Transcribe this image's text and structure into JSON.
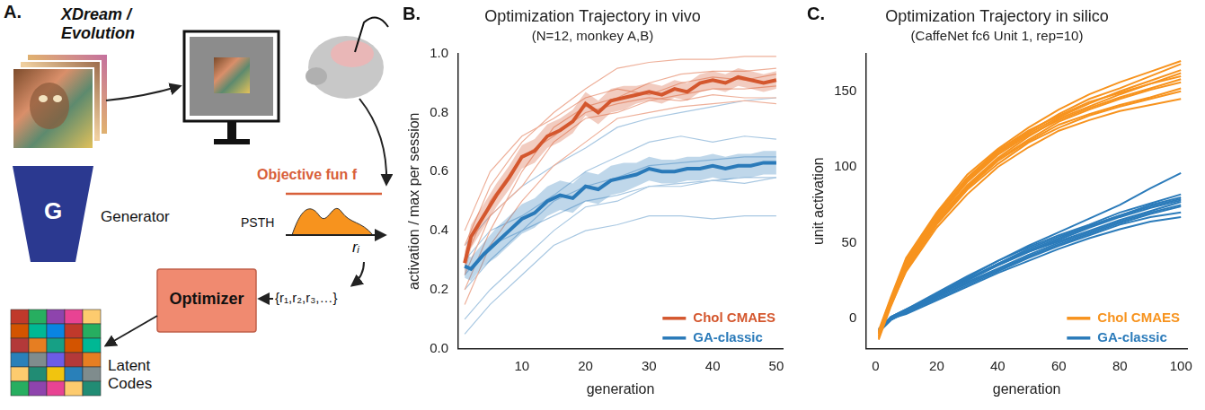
{
  "panel_a": {
    "label": "A.",
    "title": "XDream / Evolution",
    "objective": "Objective fun f",
    "psth": "PSTH",
    "response": "rᵢ",
    "responses": "{r₁,r₂,r₃,…}",
    "optimizer": "Optimizer",
    "generator_symbol": "G",
    "generator": "Generator",
    "latent_codes": "Latent Codes"
  },
  "chart_data": [
    {
      "panel": "B.",
      "type": "line",
      "title": "Optimization Trajectory in vivo",
      "subtitle": "(N=12, monkey A,B)",
      "x_label": "generation",
      "y_label": "activation / max per session",
      "xlim": [
        0,
        51
      ],
      "xticks": [
        10,
        20,
        30,
        40,
        50
      ],
      "ylim": [
        0,
        1
      ],
      "yticks": [
        {
          "value": 0,
          "label": "0.0"
        },
        {
          "value": 0.2,
          "label": "0.2"
        },
        {
          "value": 0.4,
          "label": "0.4"
        },
        {
          "value": 0.6,
          "label": "0.6"
        },
        {
          "value": 0.8,
          "label": "0.8"
        },
        {
          "value": 1,
          "label": "1.0"
        }
      ],
      "grid": false,
      "legend": "lower right",
      "series": [
        {
          "name": "Chol CMAES",
          "color": "#d4572e",
          "x": [
            1,
            2,
            4,
            6,
            8,
            10,
            12,
            14,
            16,
            18,
            20,
            22,
            24,
            26,
            28,
            30,
            32,
            34,
            36,
            38,
            40,
            42,
            44,
            46,
            48,
            50
          ],
          "values": [
            0.29,
            0.38,
            0.45,
            0.52,
            0.58,
            0.65,
            0.67,
            0.72,
            0.74,
            0.77,
            0.83,
            0.8,
            0.84,
            0.85,
            0.86,
            0.87,
            0.86,
            0.88,
            0.87,
            0.9,
            0.91,
            0.9,
            0.92,
            0.91,
            0.9,
            0.91
          ],
          "lower": [
            0.25,
            0.34,
            0.41,
            0.48,
            0.54,
            0.61,
            0.63,
            0.68,
            0.7,
            0.73,
            0.79,
            0.76,
            0.8,
            0.81,
            0.83,
            0.84,
            0.83,
            0.85,
            0.84,
            0.87,
            0.88,
            0.87,
            0.89,
            0.88,
            0.87,
            0.88
          ],
          "upper": [
            0.33,
            0.42,
            0.49,
            0.56,
            0.62,
            0.69,
            0.71,
            0.76,
            0.78,
            0.81,
            0.87,
            0.84,
            0.88,
            0.89,
            0.89,
            0.9,
            0.89,
            0.91,
            0.9,
            0.93,
            0.94,
            0.93,
            0.95,
            0.94,
            0.93,
            0.94
          ],
          "session_x": [
            1,
            5,
            10,
            15,
            20,
            25,
            30,
            35,
            40,
            45,
            50
          ],
          "sessions": [
            {
              "color": "#eeb09a",
              "values": [
                0.35,
                0.55,
                0.7,
                0.8,
                0.88,
                0.95,
                0.97,
                0.98,
                0.98,
                0.99,
                0.99
              ]
            },
            {
              "color": "#eeb09a",
              "values": [
                0.2,
                0.4,
                0.6,
                0.75,
                0.82,
                0.85,
                0.9,
                0.93,
                0.94,
                0.94,
                0.95
              ]
            },
            {
              "color": "#eeb09a",
              "values": [
                0.4,
                0.6,
                0.72,
                0.78,
                0.85,
                0.88,
                0.86,
                0.9,
                0.92,
                0.91,
                0.93
              ]
            },
            {
              "color": "#eeb09a",
              "values": [
                0.25,
                0.45,
                0.55,
                0.7,
                0.78,
                0.8,
                0.84,
                0.86,
                0.88,
                0.88,
                0.89
              ]
            },
            {
              "color": "#eeb09a",
              "values": [
                0.3,
                0.5,
                0.65,
                0.72,
                0.8,
                0.83,
                0.85,
                0.84,
                0.86,
                0.85,
                0.85
              ]
            },
            {
              "color": "#eeb09a",
              "values": [
                0.15,
                0.35,
                0.5,
                0.62,
                0.7,
                0.78,
                0.8,
                0.82,
                0.83,
                0.84,
                0.83
              ]
            }
          ]
        },
        {
          "name": "GA-classic",
          "color": "#2a7ab9",
          "x": [
            1,
            2,
            4,
            6,
            8,
            10,
            12,
            14,
            16,
            18,
            20,
            22,
            24,
            26,
            28,
            30,
            32,
            34,
            36,
            38,
            40,
            42,
            44,
            46,
            48,
            50
          ],
          "values": [
            0.28,
            0.27,
            0.32,
            0.36,
            0.4,
            0.44,
            0.46,
            0.5,
            0.52,
            0.51,
            0.55,
            0.54,
            0.57,
            0.58,
            0.59,
            0.61,
            0.6,
            0.6,
            0.61,
            0.61,
            0.62,
            0.61,
            0.62,
            0.62,
            0.63,
            0.63
          ],
          "lower": [
            0.24,
            0.23,
            0.28,
            0.31,
            0.35,
            0.39,
            0.41,
            0.45,
            0.47,
            0.46,
            0.5,
            0.49,
            0.52,
            0.53,
            0.55,
            0.57,
            0.56,
            0.56,
            0.57,
            0.57,
            0.58,
            0.57,
            0.58,
            0.58,
            0.59,
            0.59
          ],
          "upper": [
            0.32,
            0.31,
            0.36,
            0.41,
            0.45,
            0.49,
            0.51,
            0.55,
            0.57,
            0.56,
            0.6,
            0.59,
            0.62,
            0.63,
            0.63,
            0.65,
            0.64,
            0.64,
            0.65,
            0.65,
            0.66,
            0.65,
            0.66,
            0.66,
            0.67,
            0.67
          ],
          "session_x": [
            1,
            5,
            10,
            15,
            20,
            25,
            30,
            35,
            40,
            45,
            50
          ],
          "sessions": [
            {
              "color": "#a9c8e2",
              "values": [
                0.05,
                0.15,
                0.25,
                0.35,
                0.4,
                0.42,
                0.45,
                0.45,
                0.44,
                0.45,
                0.45
              ]
            },
            {
              "color": "#a9c8e2",
              "values": [
                0.2,
                0.3,
                0.4,
                0.5,
                0.55,
                0.58,
                0.62,
                0.63,
                0.64,
                0.65,
                0.65
              ]
            },
            {
              "color": "#a9c8e2",
              "values": [
                0.3,
                0.4,
                0.45,
                0.52,
                0.6,
                0.65,
                0.7,
                0.72,
                0.7,
                0.72,
                0.71
              ]
            },
            {
              "color": "#a9c8e2",
              "values": [
                0.1,
                0.2,
                0.3,
                0.4,
                0.48,
                0.5,
                0.55,
                0.56,
                0.57,
                0.56,
                0.58
              ]
            },
            {
              "color": "#a9c8e2",
              "values": [
                0.35,
                0.45,
                0.55,
                0.62,
                0.68,
                0.75,
                0.78,
                0.8,
                0.82,
                0.84,
                0.85
              ]
            },
            {
              "color": "#a9c8e2",
              "values": [
                0.25,
                0.35,
                0.4,
                0.45,
                0.5,
                0.52,
                0.55,
                0.55,
                0.57,
                0.58,
                0.58
              ]
            }
          ]
        }
      ]
    },
    {
      "panel": "C.",
      "type": "line",
      "title": "Optimization Trajectory in silico",
      "subtitle": "(CaffeNet fc6 Unit 1, rep=10)",
      "x_label": "generation",
      "y_label": "unit activation",
      "xlim": [
        -3,
        102
      ],
      "xticks": [
        0,
        20,
        40,
        60,
        80,
        100
      ],
      "ylim": [
        -20,
        175
      ],
      "yticks": [
        0,
        50,
        100,
        150
      ],
      "grid": false,
      "legend": "lower right",
      "series": [
        {
          "name": "Chol CMAES",
          "color": "#f7931e",
          "x": [
            1,
            5,
            10,
            20,
            30,
            40,
            50,
            60,
            70,
            80,
            90,
            100
          ],
          "reps": [
            [
              -10,
              12,
              38,
              68,
              92,
              110,
              123,
              135,
              145,
              152,
              160,
              168
            ],
            [
              -12,
              10,
              35,
              65,
              88,
              106,
              120,
              132,
              140,
              148,
              155,
              162
            ],
            [
              -8,
              14,
              40,
              70,
              95,
              112,
              126,
              138,
              148,
              156,
              163,
              170
            ],
            [
              -14,
              8,
              32,
              62,
              85,
              102,
              116,
              126,
              134,
              140,
              145,
              150
            ],
            [
              -10,
              11,
              36,
              66,
              90,
              108,
              121,
              131,
              139,
              146,
              152,
              158
            ],
            [
              -9,
              13,
              37,
              67,
              91,
              109,
              122,
              133,
              142,
              150,
              157,
              164
            ],
            [
              -11,
              9,
              33,
              63,
              86,
              104,
              117,
              128,
              135,
              141,
              146,
              152
            ],
            [
              -13,
              10,
              34,
              64,
              87,
              105,
              118,
              130,
              138,
              145,
              151,
              156
            ],
            [
              -10,
              12,
              39,
              69,
              93,
              111,
              124,
              134,
              143,
              149,
              155,
              160
            ],
            [
              -12,
              9,
              31,
              60,
              82,
              100,
              113,
              124,
              131,
              137,
              141,
              145
            ]
          ]
        },
        {
          "name": "GA-classic",
          "color": "#2b7bba",
          "x": [
            1,
            5,
            10,
            20,
            30,
            40,
            50,
            60,
            70,
            80,
            90,
            100
          ],
          "reps": [
            [
              -8,
              0,
              5,
              16,
              27,
              38,
              48,
              57,
              66,
              75,
              86,
              96
            ],
            [
              -9,
              -1,
              4,
              14,
              24,
              33,
              42,
              50,
              57,
              64,
              70,
              75
            ],
            [
              -7,
              1,
              6,
              15,
              26,
              36,
              45,
              53,
              61,
              68,
              75,
              80
            ],
            [
              -8,
              0,
              4,
              13,
              22,
              31,
              40,
              48,
              55,
              62,
              67,
              70
            ],
            [
              -9,
              -1,
              5,
              15,
              25,
              35,
              44,
              52,
              60,
              67,
              73,
              78
            ],
            [
              -8,
              1,
              6,
              17,
              28,
              38,
              47,
              55,
              62,
              70,
              76,
              82
            ],
            [
              -7,
              0,
              4,
              14,
              23,
              32,
              41,
              49,
              56,
              63,
              69,
              74
            ],
            [
              -8,
              -1,
              5,
              15,
              26,
              35,
              44,
              51,
              58,
              65,
              71,
              77
            ],
            [
              -9,
              0,
              3,
              12,
              21,
              30,
              38,
              46,
              53,
              59,
              64,
              67
            ],
            [
              -8,
              1,
              6,
              16,
              26,
              36,
              46,
              54,
              61,
              68,
              74,
              79
            ]
          ]
        }
      ]
    }
  ]
}
